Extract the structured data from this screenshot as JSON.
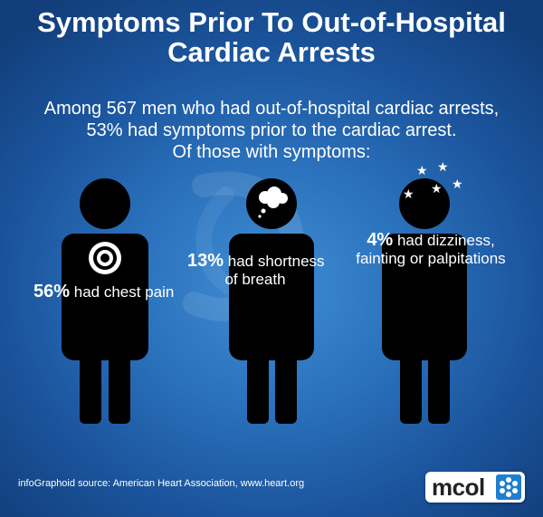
{
  "title": {
    "line1": "Symptoms Prior To Out-of-Hospital",
    "line2": "Cardiac Arrests"
  },
  "intro": {
    "line1": "Among 567 men who had out-of-hospital cardiac arrests,",
    "line2": "53% had symptoms prior to the cardiac arrest.",
    "line3": "Of those with symptoms:"
  },
  "symptoms": [
    {
      "pct": "56%",
      "line1": " had chest pain",
      "icon": "target-icon"
    },
    {
      "pct": "13%",
      "line1": " had shortness",
      "line2": "of breath",
      "icon": "thought-bubble-icon"
    },
    {
      "pct": "4%",
      "line1": " had dizziness,",
      "line2": "fainting or palpitations",
      "icon": "stars-icon"
    }
  ],
  "source": "infoGraphoid source:  American Heart Association, www.heart.org",
  "logo": {
    "text": "mcol",
    "icon": "asterisk-logo-icon"
  },
  "colors": {
    "background": "#2a70bb",
    "figure": "#000000",
    "text": "#ffffff"
  }
}
